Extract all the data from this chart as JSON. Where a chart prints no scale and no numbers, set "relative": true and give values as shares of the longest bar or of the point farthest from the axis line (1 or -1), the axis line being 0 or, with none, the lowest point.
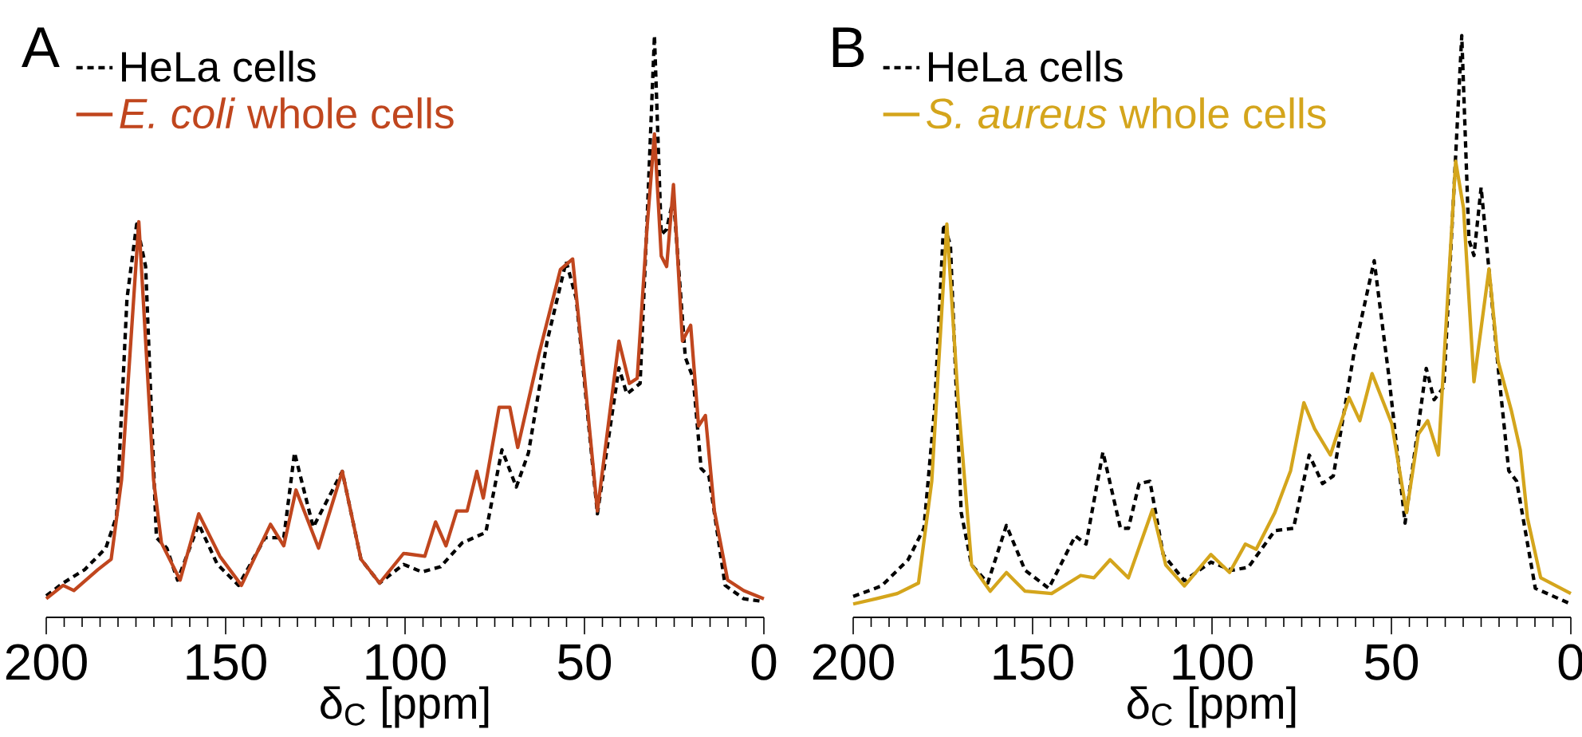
{
  "chart_data": [
    {
      "type": "line",
      "title": "A",
      "xlabel": "δ$_{C}$ [ppm]",
      "xlim": [
        200,
        0
      ],
      "xticks": [
        200,
        150,
        100,
        50,
        0
      ],
      "relative": true,
      "legend": "top left",
      "series": [
        {
          "name": "HeLa cells",
          "color": "#000000",
          "line_style": "dashed",
          "x": [
            200,
            195.3,
            189.3,
            183.4,
            180.4,
            177.5,
            174.8,
            172.3,
            169.3,
            166.4,
            163.4,
            157.5,
            152.3,
            146.4,
            139,
            133.8,
            130.8,
            125.6,
            117.5,
            112.3,
            107.1,
            100.4,
            95.3,
            90.1,
            84.1,
            77.5,
            73,
            69,
            65.6,
            60.4,
            55.1,
            52.3,
            46.4,
            40.4,
            38.2,
            34.5,
            32.6,
            30.5,
            28.6,
            27.1,
            25.2,
            21.9,
            19.7,
            17.5,
            15.3,
            10.8,
            5.6,
            0
          ],
          "values": [
            0.037,
            0.059,
            0.082,
            0.119,
            0.174,
            0.548,
            0.676,
            0.603,
            0.137,
            0.119,
            0.064,
            0.16,
            0.091,
            0.055,
            0.137,
            0.137,
            0.283,
            0.155,
            0.251,
            0.1,
            0.059,
            0.091,
            0.078,
            0.087,
            0.128,
            0.146,
            0.288,
            0.224,
            0.283,
            0.475,
            0.612,
            0.548,
            0.178,
            0.429,
            0.384,
            0.402,
            0.676,
            1.0,
            0.658,
            0.667,
            0.721,
            0.447,
            0.411,
            0.256,
            0.242,
            0.055,
            0.032,
            0.027
          ]
        },
        {
          "name": "*E. coli* whole cells",
          "color": "#c0461e",
          "line_style": "solid",
          "x": [
            200,
            195.3,
            192.3,
            185.6,
            181.9,
            179,
            174.2,
            170.1,
            167.9,
            162.7,
            157.5,
            151.6,
            145.6,
            137.5,
            133.8,
            130.4,
            124.1,
            117.5,
            112.3,
            107.1,
            100.4,
            94.5,
            91.5,
            88.6,
            85.6,
            82.7,
            80,
            78.2,
            73.8,
            70.8,
            68.6,
            62.7,
            56.7,
            53.3,
            50.1,
            46.4,
            40.4,
            37.5,
            35.3,
            32.6,
            30.5,
            28.6,
            27.1,
            25.2,
            22.7,
            20.4,
            18.2,
            16.3,
            13.8,
            10.1,
            5.6,
            0
          ],
          "values": [
            0.032,
            0.055,
            0.046,
            0.082,
            0.1,
            0.237,
            0.68,
            0.237,
            0.128,
            0.064,
            0.178,
            0.105,
            0.055,
            0.16,
            0.123,
            0.219,
            0.119,
            0.251,
            0.1,
            0.059,
            0.11,
            0.105,
            0.164,
            0.123,
            0.183,
            0.183,
            0.251,
            0.205,
            0.361,
            0.361,
            0.292,
            0.452,
            0.598,
            0.616,
            0.42,
            0.183,
            0.475,
            0.402,
            0.411,
            0.667,
            0.831,
            0.621,
            0.603,
            0.744,
            0.475,
            0.502,
            0.329,
            0.347,
            0.183,
            0.064,
            0.046,
            0.032
          ]
        }
      ]
    },
    {
      "type": "line",
      "title": "B",
      "xlabel": "δ$_{C}$ [ppm]",
      "xlim": [
        200,
        0
      ],
      "xticks": [
        200,
        150,
        100,
        50,
        0
      ],
      "relative": true,
      "legend": "top left",
      "series": [
        {
          "name": "HeLa cells",
          "color": "#000000",
          "line_style": "dashed",
          "x": [
            200,
            192.1,
            184.7,
            180.3,
            177.3,
            174.8,
            172.9,
            169.9,
            167,
            162.5,
            157.3,
            152.1,
            145.5,
            138.1,
            135.1,
            130.4,
            125.5,
            123.3,
            120.3,
            117.3,
            113.6,
            107.7,
            100.3,
            94.4,
            89.9,
            82.5,
            77.3,
            72.9,
            69.2,
            66.2,
            60.3,
            54.8,
            50.7,
            46.2,
            40.3,
            38.1,
            35.4,
            32.4,
            30.4,
            28.4,
            27,
            25,
            22.5,
            20.3,
            17.3,
            15.1,
            9.9,
            0
          ],
          "values": [
            0.036,
            0.054,
            0.099,
            0.153,
            0.36,
            0.676,
            0.64,
            0.18,
            0.09,
            0.059,
            0.158,
            0.081,
            0.05,
            0.14,
            0.126,
            0.284,
            0.153,
            0.153,
            0.23,
            0.234,
            0.108,
            0.063,
            0.095,
            0.081,
            0.086,
            0.149,
            0.153,
            0.279,
            0.23,
            0.243,
            0.459,
            0.613,
            0.414,
            0.162,
            0.428,
            0.374,
            0.396,
            0.757,
            1.0,
            0.649,
            0.622,
            0.739,
            0.577,
            0.432,
            0.252,
            0.234,
            0.05,
            0.023
          ]
        },
        {
          "name": "*S. aureus* whole cells",
          "color": "#d4a51c",
          "line_style": "solid",
          "x": [
            200,
            193.6,
            187.7,
            181.8,
            178.1,
            173.9,
            170.7,
            167,
            161.8,
            157.3,
            152.1,
            144.7,
            136.6,
            132.9,
            128.4,
            123.3,
            116.6,
            112.9,
            107.7,
            100.3,
            95.1,
            90.7,
            87.7,
            82.5,
            78.1,
            74.4,
            71.4,
            67,
            61.8,
            58.8,
            55.4,
            49.9,
            45.8,
            42.5,
            39.9,
            36.9,
            32.1,
            29.9,
            27,
            22.8,
            20.3,
            16.6,
            14.1,
            12.1,
            8.4,
            0
          ],
          "values": [
            0.023,
            0.032,
            0.041,
            0.059,
            0.234,
            0.676,
            0.369,
            0.09,
            0.045,
            0.077,
            0.045,
            0.041,
            0.072,
            0.068,
            0.099,
            0.068,
            0.185,
            0.09,
            0.054,
            0.108,
            0.077,
            0.126,
            0.117,
            0.18,
            0.252,
            0.369,
            0.324,
            0.279,
            0.378,
            0.338,
            0.419,
            0.333,
            0.18,
            0.315,
            0.338,
            0.279,
            0.784,
            0.703,
            0.405,
            0.599,
            0.441,
            0.356,
            0.288,
            0.171,
            0.068,
            0.041
          ]
        }
      ]
    }
  ]
}
